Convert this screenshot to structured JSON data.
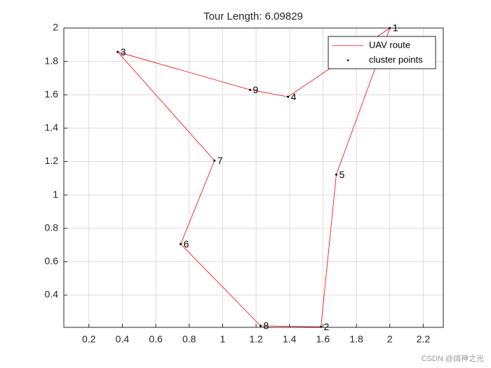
{
  "chart_data": {
    "type": "line",
    "title": "Tour Length: 6.09829",
    "xlim": [
      0.05,
      2.32
    ],
    "ylim": [
      0.207,
      2
    ],
    "xticks": [
      0.2,
      0.4,
      0.6,
      0.8,
      1,
      1.2,
      1.4,
      1.6,
      1.8,
      2,
      2.2
    ],
    "yticks": [
      0.4,
      0.6,
      0.8,
      1,
      1.2,
      1.4,
      1.6,
      1.8,
      2
    ],
    "grid": true,
    "legend": "northeast",
    "series": [
      {
        "name": "UAV route",
        "color": "#ff0000",
        "x": [
          2.0,
          1.68,
          1.588,
          1.227,
          0.749,
          0.951,
          0.372,
          1.164,
          1.391,
          2.0
        ],
        "y": [
          2.0,
          1.122,
          0.21,
          0.216,
          0.706,
          1.206,
          1.857,
          1.63,
          1.588,
          2.0
        ]
      },
      {
        "name": "cluster points",
        "color": "#000000",
        "labels": [
          "1",
          "2",
          "3",
          "4",
          "5",
          "6",
          "7",
          "8",
          "9"
        ],
        "x": [
          2.0,
          1.588,
          0.372,
          1.391,
          1.68,
          0.749,
          0.951,
          1.227,
          1.164
        ],
        "y": [
          2.0,
          0.21,
          1.857,
          1.588,
          1.122,
          0.706,
          1.206,
          0.216,
          1.63
        ]
      }
    ]
  },
  "watermark": "CSDN @阔神之光"
}
